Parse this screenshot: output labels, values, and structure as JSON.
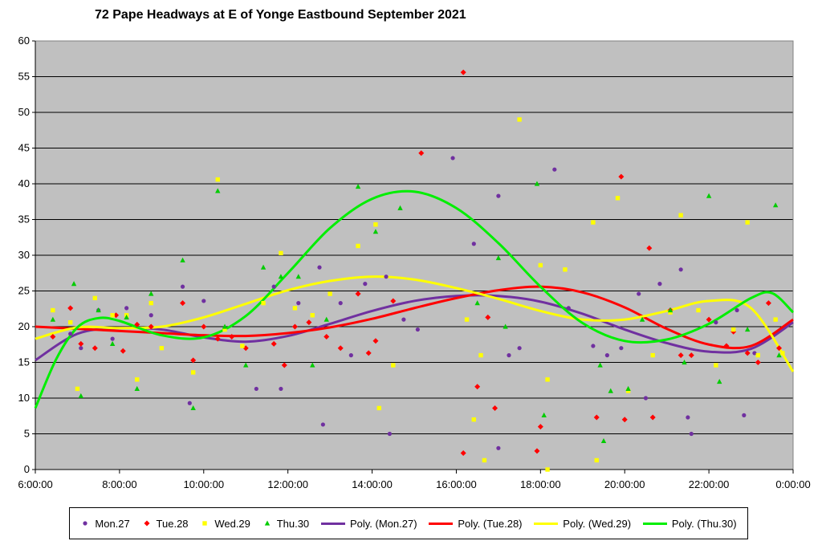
{
  "chart_data": {
    "type": "scatter",
    "title": "72 Pape Headways at E of Yonge Eastbound September 2021",
    "xlabel": "",
    "ylabel": "",
    "xlim": [
      "6:00:00",
      "0:00:00"
    ],
    "ylim": [
      0,
      60
    ],
    "y_ticks": [
      "0",
      "5",
      "10",
      "15",
      "20",
      "25",
      "30",
      "35",
      "40",
      "45",
      "50",
      "55",
      "60"
    ],
    "x_ticks": [
      "6:00:00",
      "8:00:00",
      "10:00:00",
      "12:00:00",
      "14:00:00",
      "16:00:00",
      "18:00:00",
      "20:00:00",
      "22:00:00",
      "0:00:00"
    ],
    "grid": true,
    "legend_position": "bottom",
    "series": [
      {
        "name": "Mon.27",
        "color": "#7030a0",
        "marker": "circle",
        "points": [
          [
            "6:50",
            19.0
          ],
          [
            "7:05",
            17.0
          ],
          [
            "7:30",
            22.3
          ],
          [
            "7:50",
            18.3
          ],
          [
            "8:10",
            22.6
          ],
          [
            "8:45",
            21.6
          ],
          [
            "9:30",
            25.6
          ],
          [
            "9:40",
            9.3
          ],
          [
            "10:00",
            23.6
          ],
          [
            "11:15",
            11.3
          ],
          [
            "11:40",
            25.6
          ],
          [
            "11:50",
            11.3
          ],
          [
            "12:15",
            23.3
          ],
          [
            "12:45",
            28.3
          ],
          [
            "12:50",
            6.3
          ],
          [
            "13:15",
            23.3
          ],
          [
            "13:30",
            16.0
          ],
          [
            "13:50",
            26.0
          ],
          [
            "14:20",
            27.0
          ],
          [
            "14:25",
            5.0
          ],
          [
            "14:45",
            21.0
          ],
          [
            "15:05",
            19.6
          ],
          [
            "15:55",
            43.6
          ],
          [
            "16:25",
            31.6
          ],
          [
            "17:00",
            38.3
          ],
          [
            "17:00",
            3.0
          ],
          [
            "17:15",
            16.0
          ],
          [
            "17:30",
            17.0
          ],
          [
            "18:20",
            42.0
          ],
          [
            "18:40",
            22.6
          ],
          [
            "19:15",
            17.3
          ],
          [
            "19:35",
            16.0
          ],
          [
            "19:55",
            17.0
          ],
          [
            "20:20",
            24.6
          ],
          [
            "20:30",
            10.0
          ],
          [
            "20:50",
            26.0
          ],
          [
            "21:20",
            28.0
          ],
          [
            "21:30",
            7.3
          ],
          [
            "21:35",
            5.0
          ],
          [
            "22:10",
            20.6
          ],
          [
            "22:40",
            22.3
          ],
          [
            "22:50",
            7.6
          ],
          [
            "23:05",
            16.3
          ]
        ]
      },
      {
        "name": "Tue.28",
        "color": "#ff0000",
        "marker": "diamond",
        "points": [
          [
            "6:25",
            18.6
          ],
          [
            "6:50",
            22.6
          ],
          [
            "7:05",
            17.6
          ],
          [
            "7:25",
            17.0
          ],
          [
            "7:55",
            21.6
          ],
          [
            "8:05",
            16.6
          ],
          [
            "8:25",
            20.3
          ],
          [
            "8:45",
            20.0
          ],
          [
            "9:30",
            23.3
          ],
          [
            "9:45",
            15.3
          ],
          [
            "10:00",
            20.0
          ],
          [
            "10:20",
            18.3
          ],
          [
            "10:40",
            18.6
          ],
          [
            "11:00",
            17.0
          ],
          [
            "11:40",
            17.6
          ],
          [
            "11:55",
            14.6
          ],
          [
            "12:10",
            20.0
          ],
          [
            "12:30",
            20.6
          ],
          [
            "12:55",
            18.6
          ],
          [
            "13:15",
            17.0
          ],
          [
            "13:40",
            24.6
          ],
          [
            "13:55",
            16.3
          ],
          [
            "14:05",
            18.0
          ],
          [
            "14:30",
            23.6
          ],
          [
            "15:10",
            44.3
          ],
          [
            "16:10",
            55.6
          ],
          [
            "16:10",
            2.3
          ],
          [
            "16:30",
            11.6
          ],
          [
            "16:45",
            21.3
          ],
          [
            "16:55",
            8.6
          ],
          [
            "17:55",
            2.6
          ],
          [
            "18:00",
            6.0
          ],
          [
            "19:20",
            7.3
          ],
          [
            "19:55",
            41.0
          ],
          [
            "20:00",
            7.0
          ],
          [
            "20:35",
            31.0
          ],
          [
            "20:40",
            7.3
          ],
          [
            "21:05",
            22.3
          ],
          [
            "21:20",
            16.0
          ],
          [
            "21:35",
            16.0
          ],
          [
            "22:00",
            21.0
          ],
          [
            "22:25",
            17.3
          ],
          [
            "22:35",
            19.3
          ],
          [
            "22:55",
            16.3
          ],
          [
            "23:10",
            15.0
          ],
          [
            "23:25",
            23.3
          ],
          [
            "23:40",
            17.0
          ]
        ]
      },
      {
        "name": "Wed.29",
        "color": "#ffff00",
        "marker": "square",
        "points": [
          [
            "6:25",
            22.3
          ],
          [
            "6:50",
            20.6
          ],
          [
            "7:00",
            11.3
          ],
          [
            "7:25",
            24.0
          ],
          [
            "7:50",
            21.6
          ],
          [
            "8:10",
            21.6
          ],
          [
            "8:25",
            12.6
          ],
          [
            "8:45",
            23.3
          ],
          [
            "9:00",
            17.0
          ],
          [
            "9:45",
            13.6
          ],
          [
            "10:20",
            40.6
          ],
          [
            "10:30",
            19.6
          ],
          [
            "10:55",
            17.3
          ],
          [
            "11:25",
            23.3
          ],
          [
            "11:50",
            30.3
          ],
          [
            "12:10",
            22.6
          ],
          [
            "12:35",
            21.6
          ],
          [
            "13:00",
            24.6
          ],
          [
            "13:40",
            31.3
          ],
          [
            "14:05",
            34.3
          ],
          [
            "14:10",
            8.6
          ],
          [
            "14:30",
            14.6
          ],
          [
            "16:15",
            21.0
          ],
          [
            "16:25",
            7.0
          ],
          [
            "16:35",
            16.0
          ],
          [
            "16:40",
            1.3
          ],
          [
            "17:30",
            49.0
          ],
          [
            "18:00",
            28.6
          ],
          [
            "18:10",
            12.6
          ],
          [
            "18:10",
            0.0
          ],
          [
            "18:35",
            28.0
          ],
          [
            "19:15",
            34.6
          ],
          [
            "19:20",
            1.3
          ],
          [
            "19:50",
            38.0
          ],
          [
            "20:05",
            11.0
          ],
          [
            "20:40",
            16.0
          ],
          [
            "21:05",
            22.0
          ],
          [
            "21:20",
            35.6
          ],
          [
            "21:45",
            22.3
          ],
          [
            "22:10",
            14.6
          ],
          [
            "22:35",
            19.6
          ],
          [
            "22:55",
            34.6
          ],
          [
            "23:10",
            16.0
          ],
          [
            "23:35",
            21.0
          ],
          [
            "23:45",
            16.3
          ]
        ]
      },
      {
        "name": "Thu.30",
        "color": "#00cc00",
        "marker": "triangle",
        "points": [
          [
            "6:25",
            21.0
          ],
          [
            "6:55",
            26.0
          ],
          [
            "7:05",
            10.3
          ],
          [
            "7:30",
            22.3
          ],
          [
            "7:50",
            17.6
          ],
          [
            "8:10",
            21.3
          ],
          [
            "8:25",
            11.3
          ],
          [
            "8:45",
            24.6
          ],
          [
            "9:30",
            29.3
          ],
          [
            "9:45",
            8.6
          ],
          [
            "10:20",
            39.0
          ],
          [
            "10:30",
            20.0
          ],
          [
            "11:00",
            14.6
          ],
          [
            "11:25",
            28.3
          ],
          [
            "11:50",
            27.0
          ],
          [
            "12:15",
            27.0
          ],
          [
            "12:35",
            14.6
          ],
          [
            "12:55",
            21.0
          ],
          [
            "13:40",
            39.6
          ],
          [
            "14:05",
            33.3
          ],
          [
            "14:40",
            36.6
          ],
          [
            "16:30",
            23.3
          ],
          [
            "17:10",
            20.0
          ],
          [
            "17:00",
            29.6
          ],
          [
            "17:55",
            40.0
          ],
          [
            "18:05",
            7.6
          ],
          [
            "19:25",
            14.6
          ],
          [
            "19:30",
            4.0
          ],
          [
            "19:40",
            11.0
          ],
          [
            "20:05",
            11.3
          ],
          [
            "20:25",
            21.0
          ],
          [
            "21:05",
            22.3
          ],
          [
            "21:25",
            15.0
          ],
          [
            "22:00",
            38.3
          ],
          [
            "22:15",
            12.3
          ],
          [
            "22:55",
            19.6
          ],
          [
            "23:35",
            37.0
          ],
          [
            "23:40",
            16.0
          ]
        ]
      }
    ],
    "trendlines": [
      {
        "name": "Poly. (Mon.27)",
        "color": "#7030a0",
        "points": [
          [
            "6:00",
            15.3
          ],
          [
            "7:00",
            19.0
          ],
          [
            "8:00",
            19.8
          ],
          [
            "9:00",
            19.6
          ],
          [
            "10:00",
            18.5
          ],
          [
            "11:00",
            17.9
          ],
          [
            "12:00",
            18.7
          ],
          [
            "13:00",
            20.4
          ],
          [
            "14:00",
            22.2
          ],
          [
            "15:00",
            23.6
          ],
          [
            "16:00",
            24.3
          ],
          [
            "17:00",
            24.3
          ],
          [
            "18:00",
            23.5
          ],
          [
            "19:00",
            21.8
          ],
          [
            "20:00",
            19.6
          ],
          [
            "21:00",
            17.7
          ],
          [
            "22:00",
            16.5
          ],
          [
            "23:00",
            16.9
          ],
          [
            "0:00",
            20.6
          ]
        ]
      },
      {
        "name": "Poly. (Tue.28)",
        "color": "#ff0000",
        "points": [
          [
            "6:00",
            20.0
          ],
          [
            "7:00",
            19.7
          ],
          [
            "8:00",
            19.4
          ],
          [
            "9:00",
            19.1
          ],
          [
            "10:00",
            18.8
          ],
          [
            "11:00",
            18.7
          ],
          [
            "12:00",
            19.1
          ],
          [
            "13:00",
            19.9
          ],
          [
            "14:00",
            21.1
          ],
          [
            "15:00",
            22.6
          ],
          [
            "16:00",
            24.0
          ],
          [
            "17:00",
            25.1
          ],
          [
            "18:00",
            25.6
          ],
          [
            "19:00",
            24.8
          ],
          [
            "20:00",
            22.7
          ],
          [
            "21:00",
            19.7
          ],
          [
            "22:00",
            17.5
          ],
          [
            "23:00",
            17.3
          ],
          [
            "0:00",
            21.0
          ]
        ]
      },
      {
        "name": "Poly. (Wed.29)",
        "color": "#ffff00",
        "points": [
          [
            "6:00",
            18.3
          ],
          [
            "7:00",
            19.9
          ],
          [
            "8:00",
            19.8
          ],
          [
            "9:00",
            20.0
          ],
          [
            "10:00",
            21.3
          ],
          [
            "11:00",
            23.2
          ],
          [
            "12:00",
            25.1
          ],
          [
            "13:00",
            26.4
          ],
          [
            "14:00",
            27.0
          ],
          [
            "15:00",
            26.6
          ],
          [
            "16:00",
            25.4
          ],
          [
            "17:00",
            23.9
          ],
          [
            "18:00",
            22.2
          ],
          [
            "19:00",
            21.0
          ],
          [
            "20:00",
            21.0
          ],
          [
            "21:00",
            22.2
          ],
          [
            "22:00",
            23.6
          ],
          [
            "23:00",
            22.6
          ],
          [
            "0:00",
            13.7
          ]
        ]
      },
      {
        "name": "Poly. (Thu.30)",
        "color": "#00ee00",
        "points": [
          [
            "6:00",
            8.6
          ],
          [
            "6:30",
            15.5
          ],
          [
            "7:00",
            19.9
          ],
          [
            "7:30",
            21.2
          ],
          [
            "8:00",
            20.8
          ],
          [
            "9:00",
            18.8
          ],
          [
            "10:00",
            18.5
          ],
          [
            "11:00",
            21.5
          ],
          [
            "12:00",
            27.5
          ],
          [
            "13:00",
            33.8
          ],
          [
            "14:00",
            37.9
          ],
          [
            "15:00",
            38.9
          ],
          [
            "16:00",
            36.6
          ],
          [
            "17:00",
            31.7
          ],
          [
            "18:00",
            25.6
          ],
          [
            "19:00",
            20.5
          ],
          [
            "20:00",
            18.0
          ],
          [
            "21:00",
            18.2
          ],
          [
            "22:00",
            20.4
          ],
          [
            "23:00",
            24.0
          ],
          [
            "23:30",
            24.7
          ],
          [
            "0:00",
            22.0
          ]
        ]
      }
    ]
  }
}
